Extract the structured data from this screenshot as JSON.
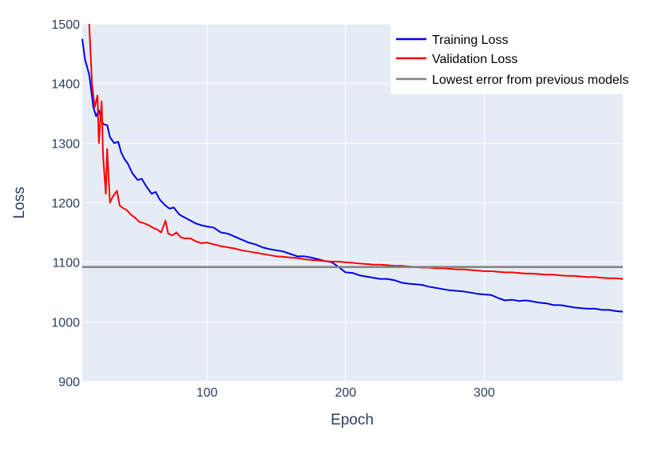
{
  "chart_data": {
    "type": "line",
    "title": "",
    "xlabel": "Epoch",
    "ylabel": "Loss",
    "xlim": [
      10,
      400
    ],
    "ylim": [
      900,
      1500
    ],
    "x_ticks": [
      100,
      200,
      300
    ],
    "y_ticks": [
      900,
      1000,
      1100,
      1200,
      1300,
      1400,
      1500
    ],
    "x_tick_labels": [
      "100",
      "200",
      "300"
    ],
    "y_tick_labels": [
      "900",
      "1000",
      "1100",
      "1200",
      "1300",
      "1400",
      "1500"
    ],
    "grid": true,
    "legend_position": "top-right",
    "colors": {
      "plot_bg": "#e5ecf6",
      "grid": "#ffffff",
      "training": "#0000ee",
      "validation": "#ff0000",
      "baseline": "#808080"
    },
    "series": [
      {
        "name": "Training Loss",
        "color": "#0000ee",
        "points": [
          [
            10,
            1475
          ],
          [
            12,
            1440
          ],
          [
            15,
            1415
          ],
          [
            18,
            1360
          ],
          [
            20,
            1345
          ],
          [
            22,
            1355
          ],
          [
            25,
            1332
          ],
          [
            28,
            1330
          ],
          [
            30,
            1310
          ],
          [
            33,
            1300
          ],
          [
            36,
            1302
          ],
          [
            38,
            1285
          ],
          [
            40,
            1275
          ],
          [
            43,
            1265
          ],
          [
            46,
            1250
          ],
          [
            50,
            1238
          ],
          [
            53,
            1240
          ],
          [
            56,
            1228
          ],
          [
            60,
            1215
          ],
          [
            63,
            1218
          ],
          [
            66,
            1205
          ],
          [
            70,
            1195
          ],
          [
            73,
            1190
          ],
          [
            76,
            1192
          ],
          [
            80,
            1180
          ],
          [
            84,
            1175
          ],
          [
            88,
            1170
          ],
          [
            92,
            1165
          ],
          [
            96,
            1162
          ],
          [
            100,
            1160
          ],
          [
            105,
            1158
          ],
          [
            110,
            1150
          ],
          [
            115,
            1148
          ],
          [
            120,
            1143
          ],
          [
            125,
            1138
          ],
          [
            130,
            1133
          ],
          [
            135,
            1130
          ],
          [
            140,
            1125
          ],
          [
            145,
            1122
          ],
          [
            150,
            1120
          ],
          [
            155,
            1118
          ],
          [
            160,
            1114
          ],
          [
            165,
            1110
          ],
          [
            170,
            1110
          ],
          [
            175,
            1108
          ],
          [
            180,
            1105
          ],
          [
            185,
            1102
          ],
          [
            190,
            1100
          ],
          [
            195,
            1092
          ],
          [
            200,
            1083
          ],
          [
            205,
            1082
          ],
          [
            210,
            1078
          ],
          [
            215,
            1076
          ],
          [
            220,
            1074
          ],
          [
            225,
            1072
          ],
          [
            230,
            1072
          ],
          [
            235,
            1070
          ],
          [
            240,
            1066
          ],
          [
            245,
            1064
          ],
          [
            250,
            1063
          ],
          [
            255,
            1062
          ],
          [
            260,
            1059
          ],
          [
            265,
            1057
          ],
          [
            270,
            1055
          ],
          [
            275,
            1053
          ],
          [
            280,
            1052
          ],
          [
            285,
            1051
          ],
          [
            290,
            1049
          ],
          [
            295,
            1047
          ],
          [
            300,
            1046
          ],
          [
            305,
            1045
          ],
          [
            310,
            1040
          ],
          [
            315,
            1036
          ],
          [
            320,
            1037
          ],
          [
            325,
            1035
          ],
          [
            330,
            1036
          ],
          [
            335,
            1034
          ],
          [
            340,
            1032
          ],
          [
            345,
            1031
          ],
          [
            350,
            1028
          ],
          [
            355,
            1028
          ],
          [
            360,
            1026
          ],
          [
            365,
            1024
          ],
          [
            370,
            1023
          ],
          [
            375,
            1022
          ],
          [
            380,
            1022
          ],
          [
            385,
            1020
          ],
          [
            390,
            1020
          ],
          [
            395,
            1018
          ],
          [
            400,
            1017
          ]
        ]
      },
      {
        "name": "Validation Loss",
        "color": "#ff0000",
        "points": [
          [
            15,
            1500
          ],
          [
            17,
            1400
          ],
          [
            19,
            1360
          ],
          [
            21,
            1380
          ],
          [
            22,
            1300
          ],
          [
            24,
            1370
          ],
          [
            25,
            1280
          ],
          [
            27,
            1215
          ],
          [
            28,
            1290
          ],
          [
            30,
            1200
          ],
          [
            32,
            1210
          ],
          [
            35,
            1220
          ],
          [
            37,
            1195
          ],
          [
            40,
            1190
          ],
          [
            42,
            1188
          ],
          [
            45,
            1180
          ],
          [
            48,
            1175
          ],
          [
            51,
            1168
          ],
          [
            55,
            1165
          ],
          [
            58,
            1162
          ],
          [
            61,
            1158
          ],
          [
            64,
            1155
          ],
          [
            67,
            1150
          ],
          [
            70,
            1170
          ],
          [
            72,
            1148
          ],
          [
            75,
            1145
          ],
          [
            78,
            1150
          ],
          [
            81,
            1142
          ],
          [
            84,
            1140
          ],
          [
            88,
            1140
          ],
          [
            92,
            1135
          ],
          [
            96,
            1132
          ],
          [
            100,
            1133
          ],
          [
            105,
            1130
          ],
          [
            110,
            1127
          ],
          [
            115,
            1125
          ],
          [
            120,
            1123
          ],
          [
            125,
            1120
          ],
          [
            130,
            1118
          ],
          [
            135,
            1116
          ],
          [
            140,
            1114
          ],
          [
            145,
            1112
          ],
          [
            150,
            1110
          ],
          [
            155,
            1109
          ],
          [
            160,
            1108
          ],
          [
            165,
            1107
          ],
          [
            170,
            1105
          ],
          [
            175,
            1104
          ],
          [
            180,
            1103
          ],
          [
            185,
            1102
          ],
          [
            190,
            1101
          ],
          [
            195,
            1101
          ],
          [
            200,
            1100
          ],
          [
            205,
            1099
          ],
          [
            210,
            1098
          ],
          [
            215,
            1097
          ],
          [
            220,
            1096
          ],
          [
            225,
            1096
          ],
          [
            230,
            1095
          ],
          [
            235,
            1094
          ],
          [
            240,
            1094
          ],
          [
            245,
            1093
          ],
          [
            250,
            1092
          ],
          [
            255,
            1091
          ],
          [
            260,
            1091
          ],
          [
            265,
            1090
          ],
          [
            270,
            1090
          ],
          [
            275,
            1089
          ],
          [
            280,
            1088
          ],
          [
            285,
            1088
          ],
          [
            290,
            1087
          ],
          [
            295,
            1086
          ],
          [
            300,
            1085
          ],
          [
            305,
            1085
          ],
          [
            310,
            1084
          ],
          [
            315,
            1083
          ],
          [
            320,
            1083
          ],
          [
            325,
            1082
          ],
          [
            330,
            1081
          ],
          [
            335,
            1081
          ],
          [
            340,
            1080
          ],
          [
            345,
            1079
          ],
          [
            350,
            1079
          ],
          [
            355,
            1078
          ],
          [
            360,
            1077
          ],
          [
            365,
            1077
          ],
          [
            370,
            1076
          ],
          [
            375,
            1075
          ],
          [
            380,
            1075
          ],
          [
            385,
            1074
          ],
          [
            390,
            1073
          ],
          [
            395,
            1073
          ],
          [
            400,
            1072
          ]
        ]
      },
      {
        "name": "Lowest error from previous models",
        "color": "#808080",
        "points": [
          [
            10,
            1092
          ],
          [
            400,
            1092
          ]
        ]
      }
    ]
  }
}
